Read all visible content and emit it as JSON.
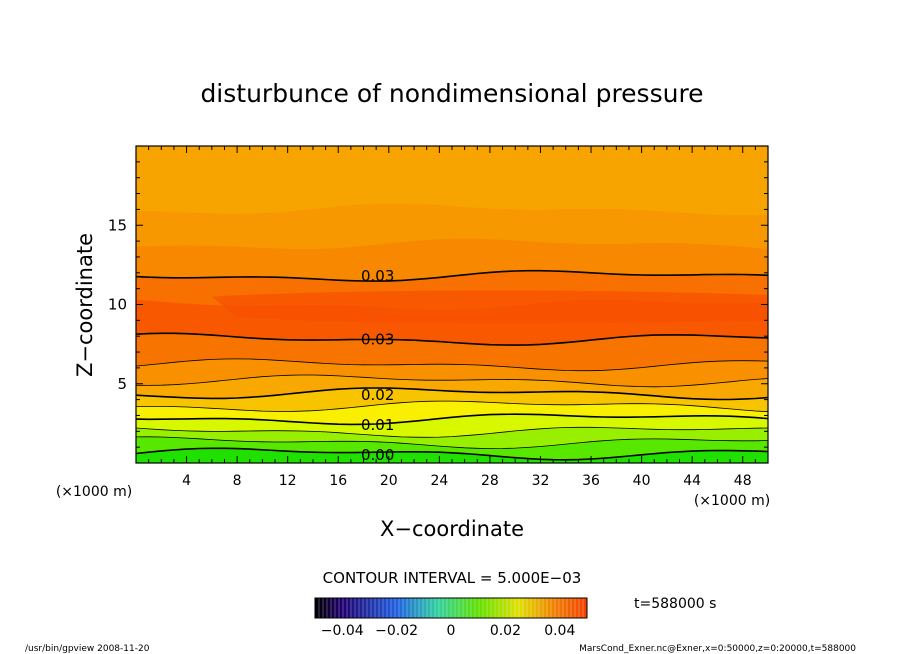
{
  "chart_data": {
    "type": "contour",
    "title": "disturbunce of nondimensional pressure",
    "xlabel": "X−coordinate",
    "ylabel": "Z−coordinate",
    "x_unit_left": "(×1000 m)",
    "x_unit_right": "(×1000 m)",
    "xlim": [
      0,
      50
    ],
    "ylim": [
      0,
      20
    ],
    "x_ticks": [
      4,
      8,
      12,
      16,
      20,
      24,
      28,
      32,
      36,
      40,
      44,
      48
    ],
    "x_tick_labels": [
      "4",
      "8",
      "12",
      "16",
      "20",
      "24",
      "28",
      "32",
      "36",
      "40",
      "44",
      "48"
    ],
    "y_ticks": [
      5,
      10,
      15
    ],
    "y_tick_labels": [
      "5",
      "10",
      "15"
    ],
    "contour_interval_label": "CONTOUR INTERVAL = 5.000E−03",
    "contour_labels": [
      {
        "text": "0.03",
        "x": 17.8,
        "z": 11.8
      },
      {
        "text": "0.03",
        "x": 17.8,
        "z": 7.8
      },
      {
        "text": "0.02",
        "x": 17.8,
        "z": 4.3
      },
      {
        "text": "0.01",
        "x": 17.8,
        "z": 2.4
      },
      {
        "text": "0.00",
        "x": 17.8,
        "z": 0.5
      }
    ],
    "time_label": "t=588000 s",
    "colorbar_range": [
      -0.05,
      0.05
    ],
    "colorbar_tick_values": [
      -0.04,
      -0.02,
      0,
      0.02,
      0.04
    ],
    "colorbar_tick_labels": [
      "−0.04",
      "−0.02",
      "0",
      "0.02",
      "0.04"
    ],
    "footer_left": "/usr/bin/gpview  2008-11-20",
    "footer_right": "MarsCond_Exner.nc@Exner,x=0:50000,z=0:20000,t=588000",
    "colors": {
      "bands": [
        "#20e000",
        "#58e800",
        "#98f000",
        "#d8f800",
        "#f8f000",
        "#f8c400",
        "#f8a800",
        "#f89000",
        "#f87400",
        "#f85800",
        "#f87000",
        "#f88800",
        "#f89800",
        "#f8a400"
      ],
      "contour_line": "#000000"
    }
  }
}
